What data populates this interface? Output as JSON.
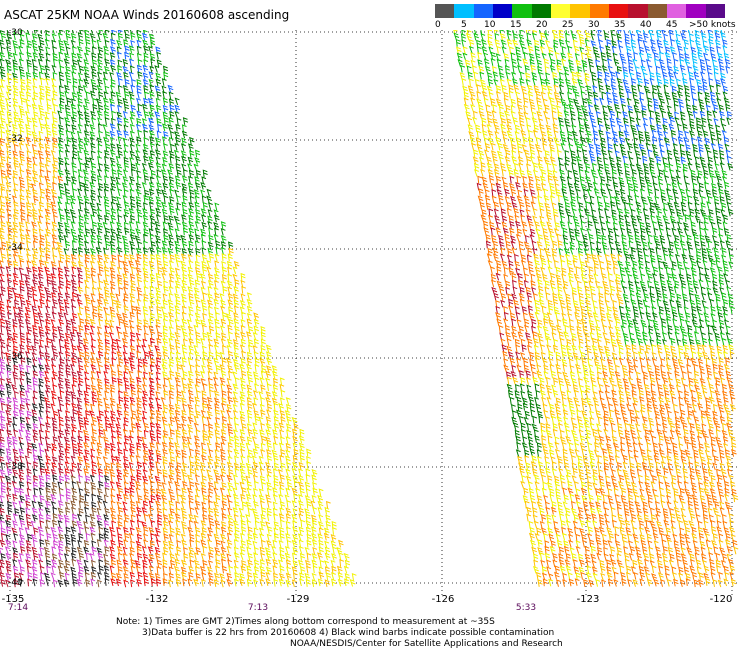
{
  "title": "ASCAT 25KM NOAA Winds 20160608 ascending",
  "scale": {
    "unit": "knots",
    "colors": [
      "#555555",
      "#00bfff",
      "#1565ff",
      "#0000c8",
      "#10c010",
      "#007a00",
      "#ffff30",
      "#ffc400",
      "#ff7a00",
      "#e81010",
      "#b8102e",
      "#8a5a30",
      "#e060e0",
      "#a000c0",
      "#5a0a8a"
    ],
    "labels": [
      "0",
      "5",
      "10",
      "15",
      "20",
      "25",
      "30",
      "35",
      "40",
      "45",
      ">50"
    ]
  },
  "y_axis": {
    "labels": [
      "-30",
      "-32",
      "-34",
      "-36",
      "-38",
      "-40"
    ]
  },
  "x_axis": {
    "labels": [
      "-135",
      "-132",
      "-129",
      "-126",
      "-123",
      "-120"
    ]
  },
  "times": [
    "7:14",
    "7:13",
    "5:33"
  ],
  "notes": {
    "line1": "Note: 1) Times are GMT 2)Times along bottom correspond to measurement at ~35S",
    "line2": "3)Data buffer is 22 hrs from 20160608 4) Black wind barbs indicate possible contamination",
    "line3": "NOAA/NESDIS/Center for Satellite Applications and Research"
  }
}
